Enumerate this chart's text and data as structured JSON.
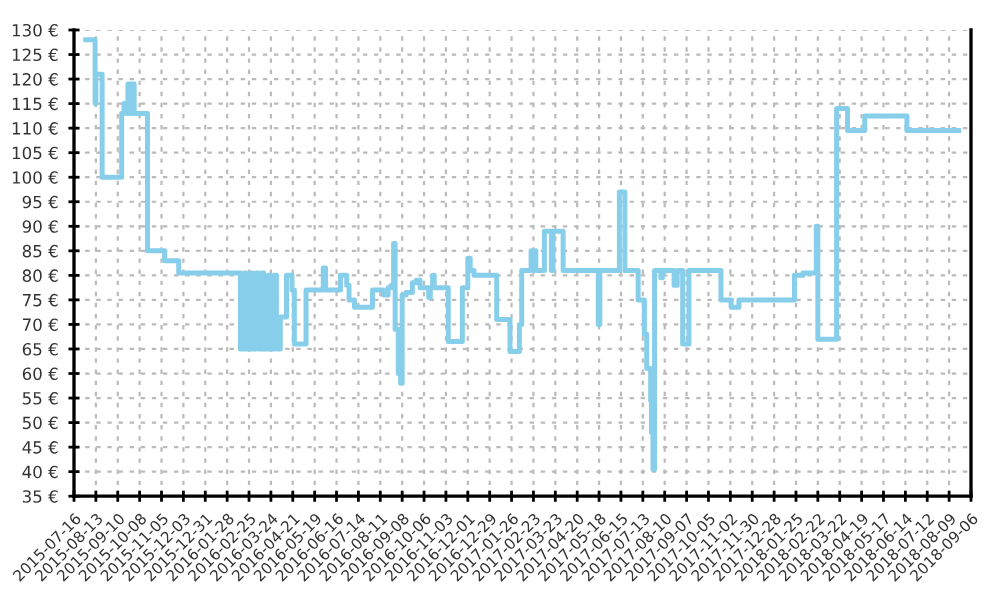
{
  "chart_data": {
    "type": "step",
    "xlim": [
      "2015-07-16",
      "2018-09-06"
    ],
    "xticks": [
      "2015-07-16",
      "2015-08-13",
      "2015-09-10",
      "2015-10-08",
      "2015-11-05",
      "2015-12-03",
      "2015-12-31",
      "2016-01-28",
      "2016-02-25",
      "2016-03-24",
      "2016-04-21",
      "2016-05-19",
      "2016-06-16",
      "2016-07-14",
      "2016-08-11",
      "2016-09-08",
      "2016-10-06",
      "2016-11-03",
      "2016-12-01",
      "2016-12-29",
      "2017-01-26",
      "2017-02-23",
      "2017-03-23",
      "2017-04-20",
      "2017-05-18",
      "2017-06-15",
      "2017-07-13",
      "2017-08-10",
      "2017-09-07",
      "2017-10-05",
      "2017-11-02",
      "2017-11-30",
      "2017-12-28",
      "2018-01-25",
      "2018-02-22",
      "2018-03-22",
      "2018-04-19",
      "2018-05-17",
      "2018-06-14",
      "2018-07-12",
      "2018-08-09",
      "2018-09-06"
    ],
    "ylim": [
      35,
      130
    ],
    "yticks": [
      {
        "value": 35,
        "label": "35 €"
      },
      {
        "value": 40,
        "label": "40 €"
      },
      {
        "value": 45,
        "label": "45 €"
      },
      {
        "value": 50,
        "label": "50 €"
      },
      {
        "value": 55,
        "label": "55 €"
      },
      {
        "value": 60,
        "label": "60 €"
      },
      {
        "value": 65,
        "label": "65 €"
      },
      {
        "value": 70,
        "label": "70 €"
      },
      {
        "value": 75,
        "label": "75 €"
      },
      {
        "value": 80,
        "label": "80 €"
      },
      {
        "value": 85,
        "label": "85 €"
      },
      {
        "value": 90,
        "label": "90 €"
      },
      {
        "value": 95,
        "label": "95 €"
      },
      {
        "value": 100,
        "label": "100 €"
      },
      {
        "value": 105,
        "label": "105 €"
      },
      {
        "value": 110,
        "label": "110 €"
      },
      {
        "value": 115,
        "label": "115 €"
      },
      {
        "value": 120,
        "label": "120 €"
      },
      {
        "value": 125,
        "label": "125 €"
      },
      {
        "value": 130,
        "label": "130 €"
      }
    ],
    "grid": true,
    "line_style": "solid",
    "marker": "none",
    "series": [
      {
        "color": "#87ceeb",
        "x": [
          "2015-07-31",
          "2015-08-12",
          "2015-08-13",
          "2015-08-21",
          "2015-09-15",
          "2015-09-18",
          "2015-09-22",
          "2015-09-23",
          "2015-09-26",
          "2015-09-28",
          "2015-10-01",
          "2015-10-18",
          "2015-11-09",
          "2015-11-27",
          "2016-02-14",
          "2016-02-19",
          "2016-02-21",
          "2016-02-27",
          "2016-02-29",
          "2016-03-05",
          "2016-03-08",
          "2016-03-13",
          "2016-03-15",
          "2016-03-21",
          "2016-03-23",
          "2016-03-28",
          "2016-03-31",
          "2016-04-05",
          "2016-04-13",
          "2016-04-20",
          "2016-04-23",
          "2016-05-08",
          "2016-05-30",
          "2016-06-02",
          "2016-06-21",
          "2016-06-29",
          "2016-07-02",
          "2016-07-09",
          "2016-08-01",
          "2016-08-15",
          "2016-08-21",
          "2016-08-25",
          "2016-08-28",
          "2016-08-30",
          "2016-09-03",
          "2016-09-06",
          "2016-09-08",
          "2016-09-13",
          "2016-09-21",
          "2016-09-26",
          "2016-10-01",
          "2016-10-12",
          "2016-10-14",
          "2016-10-17",
          "2016-10-19",
          "2016-11-06",
          "2016-11-24",
          "2016-12-01",
          "2016-12-04",
          "2016-12-09",
          "2017-01-07",
          "2017-01-24",
          "2017-02-05",
          "2017-02-08",
          "2017-02-20",
          "2017-02-26",
          "2017-03-09",
          "2017-03-18",
          "2017-03-20",
          "2017-04-02",
          "2017-05-17",
          "2017-05-19",
          "2017-06-13",
          "2017-06-20",
          "2017-07-07",
          "2017-07-15",
          "2017-07-18",
          "2017-07-23",
          "2017-07-24",
          "2017-07-26",
          "2017-07-28",
          "2017-08-05",
          "2017-08-07",
          "2017-08-22",
          "2017-08-26",
          "2017-09-02",
          "2017-09-10",
          "2017-10-21",
          "2017-11-03",
          "2017-11-13",
          "2018-01-23",
          "2018-02-03",
          "2018-02-20",
          "2018-02-22",
          "2018-03-18",
          "2018-04-01",
          "2018-04-23",
          "2018-06-16",
          "2018-08-21"
        ],
        "values": [
          128,
          115,
          121,
          100,
          113,
          115,
          113,
          119,
          113,
          119,
          113,
          85,
          83,
          80.5,
          65,
          80.5,
          65,
          80.5,
          65,
          80.5,
          65,
          80.5,
          65,
          80,
          65,
          80,
          65,
          71.5,
          80,
          77,
          66,
          77,
          81.5,
          77,
          80,
          78,
          75,
          73.5,
          77,
          76,
          77.5,
          78,
          86.5,
          69,
          60,
          58,
          76,
          76.5,
          78.5,
          79,
          77.5,
          75.5,
          77.5,
          80,
          77.5,
          66.5,
          77.5,
          83.5,
          81,
          80,
          71,
          64.5,
          70,
          81,
          85,
          81,
          89,
          81,
          89,
          81,
          70,
          81,
          97,
          81,
          75,
          68,
          61,
          54.5,
          48,
          40.5,
          81,
          79.5,
          81,
          78,
          81,
          66,
          81,
          75,
          73.5,
          75,
          80,
          80.5,
          90,
          67,
          114,
          109.5,
          112.5,
          109.5,
          109.5
        ]
      }
    ]
  }
}
